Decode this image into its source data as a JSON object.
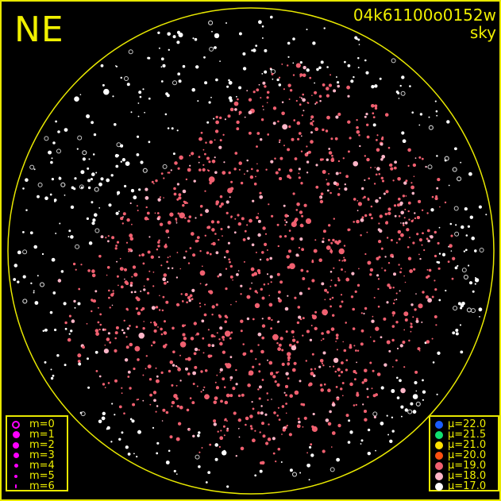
{
  "header": {
    "direction_label": "NE",
    "frame_id": "04k61100o0152w",
    "frame_type": "sky"
  },
  "border_color": "#e8e800",
  "magnitude_legend": [
    {
      "label": "m=0",
      "ring": true
    },
    {
      "label": "m=1"
    },
    {
      "label": "m=2"
    },
    {
      "label": "m=3"
    },
    {
      "label": "m=4"
    },
    {
      "label": "m=5"
    },
    {
      "label": "m=6"
    }
  ],
  "magnitude_legend_color": "#ff00ff",
  "brightness_legend": [
    {
      "label": "μ=22.0",
      "color": "#1a5cff"
    },
    {
      "label": "μ=21.5",
      "color": "#10e070"
    },
    {
      "label": "μ=21.0",
      "color": "#ffe000"
    },
    {
      "label": "μ=20.0",
      "color": "#ff5010"
    },
    {
      "label": "μ=19.0",
      "color": "#f06070"
    },
    {
      "label": "μ=18.0",
      "color": "#ffb6c8"
    },
    {
      "label": "μ=17.0",
      "color": "#ffffff"
    }
  ]
}
